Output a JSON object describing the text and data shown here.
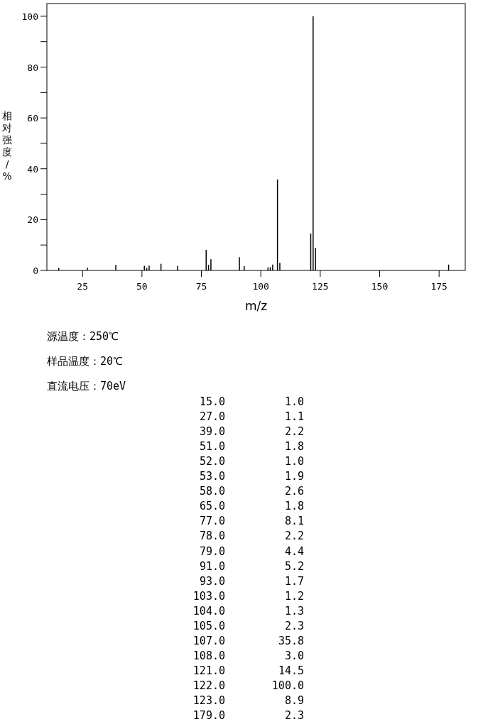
{
  "chart_data": [
    {
      "type": "bar",
      "xlabel": "m/z",
      "ylabel": "相对强度/%",
      "x": [
        15,
        27,
        39,
        51,
        52,
        53,
        58,
        65,
        77,
        78,
        79,
        91,
        93,
        103,
        104,
        105,
        107,
        108,
        121,
        122,
        123,
        179
      ],
      "values": [
        1.0,
        1.1,
        2.2,
        1.8,
        1.0,
        1.9,
        2.6,
        1.8,
        8.1,
        2.2,
        4.4,
        5.2,
        1.7,
        1.2,
        1.3,
        2.3,
        35.8,
        3.0,
        14.5,
        100.0,
        8.9,
        2.3
      ],
      "color": "#000000",
      "xlim": [
        10,
        186
      ],
      "ylim": [
        0,
        105
      ],
      "xticks": [
        25,
        50,
        75,
        100,
        125,
        150,
        175
      ],
      "yticks": [
        0,
        {
          "value": 10,
          "label": null
        },
        20,
        {
          "value": 30,
          "label": null
        },
        40,
        {
          "value": 50,
          "label": null
        },
        60,
        {
          "value": 70,
          "label": null
        },
        80,
        {
          "value": 90,
          "label": null
        },
        100
      ],
      "grid": false
    },
    {
      "type": "other",
      "annotations": [
        "源温度：250℃",
        "样品温度：20℃",
        "直流电压：70eV",
        "15.0",
        "1.0",
        "27.0",
        "1.1",
        "39.0",
        "2.2",
        "51.0",
        "1.8",
        "52.0",
        "1.0",
        "53.0",
        "1.9",
        "58.0",
        "2.6",
        "65.0",
        "1.8",
        "77.0",
        "8.1",
        "78.0",
        "2.2",
        "79.0",
        "4.4",
        "91.0",
        "5.2",
        "93.0",
        "1.7",
        "103.0",
        "1.2",
        "104.0",
        "1.3",
        "105.0",
        "2.3",
        "107.0",
        "35.8",
        "108.0",
        "3.0",
        "121.0",
        "14.5",
        "122.0",
        "100.0",
        "123.0",
        "8.9",
        "179.0",
        "2.3"
      ]
    }
  ]
}
